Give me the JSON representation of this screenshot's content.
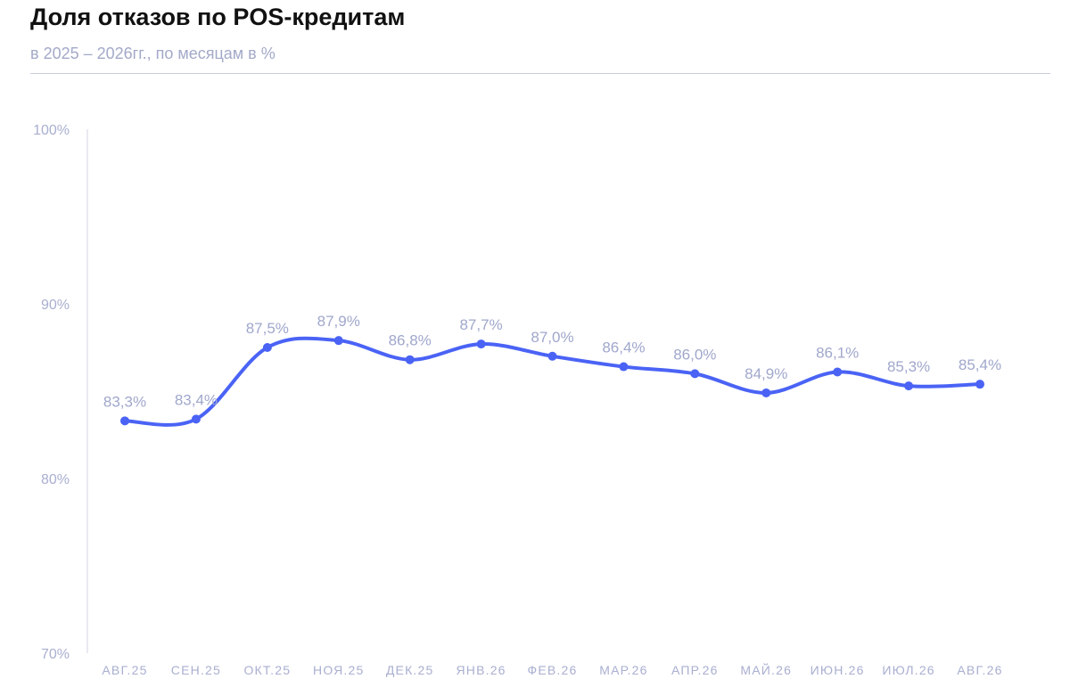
{
  "header": {
    "title": "Доля отказов по POS-кредитам",
    "subtitle": "в 2025 – 2026гг., по месяцам в %"
  },
  "chart_data": {
    "type": "line",
    "title": "Доля отказов по POS-кредитам",
    "subtitle": "в 2025 – 2026гг., по месяцам в %",
    "xlabel": "",
    "ylabel": "",
    "categories": [
      "АВГ.25",
      "СЕН.25",
      "ОКТ.25",
      "НОЯ.25",
      "ДЕК.25",
      "ЯНВ.26",
      "ФЕВ.26",
      "МАР.26",
      "АПР.26",
      "МАЙ.26",
      "ИЮН.26",
      "ИЮЛ.26",
      "АВГ.26"
    ],
    "series": [
      {
        "values": [
          83.3,
          83.4,
          87.5,
          87.9,
          86.8,
          87.7,
          87.0,
          86.4,
          86.0,
          84.9,
          86.1,
          85.3,
          85.4
        ],
        "labels": [
          "83,3%",
          "83,4%",
          "87,5%",
          "87,9%",
          "86,8%",
          "87,7%",
          "87,0%",
          "86,4%",
          "86,0%",
          "84,9%",
          "86,1%",
          "85,3%",
          "85,4%"
        ]
      }
    ],
    "ylim": [
      70,
      100
    ],
    "yticks": [
      {
        "value": 70,
        "label": "70%"
      },
      {
        "value": 80,
        "label": "80%"
      },
      {
        "value": 90,
        "label": "90%"
      },
      {
        "value": 100,
        "label": "100%"
      }
    ],
    "grid": false,
    "smooth": true,
    "line_color": "#4a63f5",
    "label_color": "#a0a7cc"
  }
}
